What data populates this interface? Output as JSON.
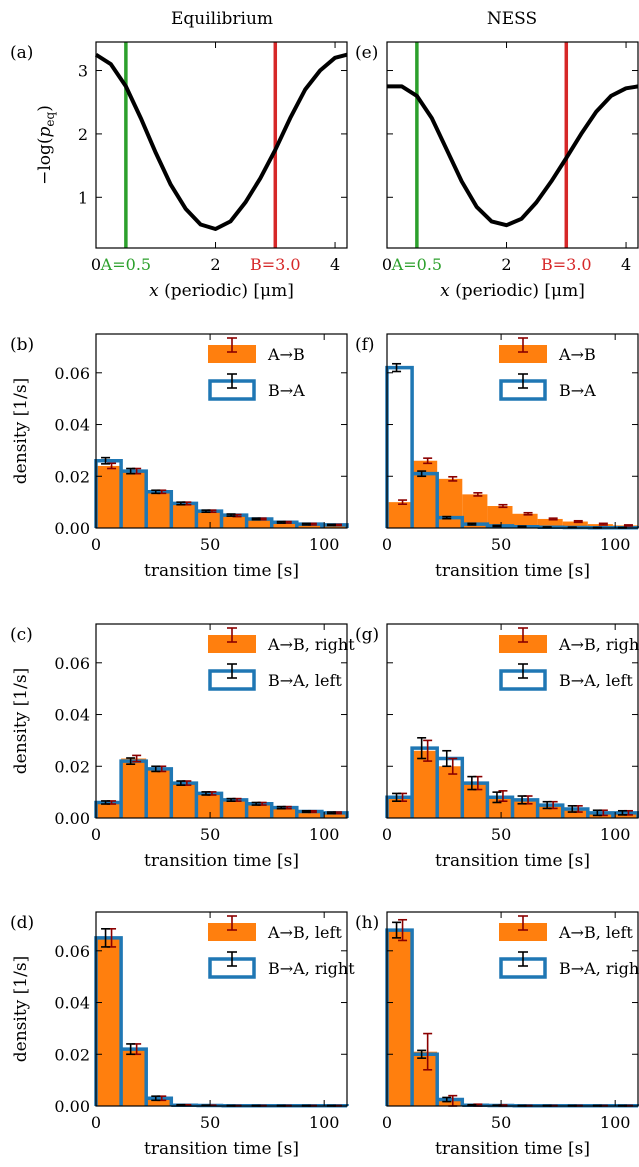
{
  "titles": {
    "left": "Equilibrium",
    "right": "NESS"
  },
  "colors": {
    "orange": "#ff7f0e",
    "blue": "#1f77b4",
    "green": "#2ca02c",
    "red": "#d62728",
    "darkred": "#8b0000",
    "black": "#000000"
  },
  "chart_data": [
    {
      "type": "line",
      "panel": "(a)",
      "title": "Equilibrium",
      "xlabel": "x (periodic) [μm]",
      "ylabel": "−log(p_eq)",
      "xlim": [
        0,
        4.2
      ],
      "ylim": [
        0.2,
        3.45
      ],
      "xticks": [
        0,
        2,
        4
      ],
      "yticks": [
        1,
        2,
        3
      ],
      "x": [
        0,
        0.25,
        0.5,
        0.75,
        1.0,
        1.25,
        1.5,
        1.75,
        2.0,
        2.25,
        2.5,
        2.75,
        3.0,
        3.25,
        3.5,
        3.75,
        4.0,
        4.2
      ],
      "y": [
        3.25,
        3.1,
        2.75,
        2.25,
        1.7,
        1.2,
        0.82,
        0.57,
        0.5,
        0.62,
        0.92,
        1.3,
        1.75,
        2.25,
        2.7,
        3.0,
        3.2,
        3.25
      ],
      "markers": [
        {
          "x": 0.5,
          "label": "A=0.5",
          "color": "green"
        },
        {
          "x": 3.0,
          "label": "B=3.0",
          "color": "red"
        }
      ]
    },
    {
      "type": "line",
      "panel": "(e)",
      "title": "NESS",
      "xlabel": "x (periodic) [μm]",
      "xlim": [
        0,
        4.2
      ],
      "ylim": [
        0.2,
        3.45
      ],
      "xticks": [
        0,
        2,
        4
      ],
      "yticks": [
        1,
        2,
        3
      ],
      "x": [
        0,
        0.25,
        0.5,
        0.75,
        1.0,
        1.25,
        1.5,
        1.75,
        2.0,
        2.25,
        2.5,
        2.75,
        3.0,
        3.25,
        3.5,
        3.75,
        4.0,
        4.2
      ],
      "y": [
        2.75,
        2.75,
        2.6,
        2.25,
        1.75,
        1.25,
        0.85,
        0.62,
        0.56,
        0.66,
        0.92,
        1.25,
        1.62,
        2.0,
        2.35,
        2.6,
        2.72,
        2.75
      ],
      "markers": [
        {
          "x": 0.5,
          "label": "A=0.5",
          "color": "green"
        },
        {
          "x": 3.0,
          "label": "B=3.0",
          "color": "red"
        }
      ]
    },
    {
      "type": "bar",
      "panel": "(b)",
      "xlabel": "transition time [s]",
      "ylabel": "density [1/s]",
      "xlim": [
        0,
        110
      ],
      "ylim": [
        0,
        0.075
      ],
      "bin_width": 11,
      "xticks": [
        0,
        50,
        100
      ],
      "yticks": [
        0.0,
        0.02,
        0.04,
        0.06
      ],
      "series": [
        {
          "name": "A→B",
          "style": "filled",
          "values": [
            0.024,
            0.022,
            0.014,
            0.0095,
            0.0065,
            0.0048,
            0.0035,
            0.0022,
            0.0015,
            0.0012
          ],
          "errors": [
            0.001,
            0.001,
            0.0006,
            0.0005,
            0.0004,
            0.0004,
            0.0003,
            0.0003,
            0.0003,
            0.0002
          ]
        },
        {
          "name": "B→A",
          "style": "outline",
          "values": [
            0.026,
            0.022,
            0.014,
            0.0095,
            0.0065,
            0.005,
            0.0035,
            0.0022,
            0.0015,
            0.0012
          ],
          "errors": [
            0.0012,
            0.001,
            0.0006,
            0.0005,
            0.0004,
            0.0004,
            0.0003,
            0.0003,
            0.0003,
            0.0002
          ]
        }
      ]
    },
    {
      "type": "bar",
      "panel": "(f)",
      "xlabel": "transition time [s]",
      "xlim": [
        0,
        110
      ],
      "ylim": [
        0,
        0.075
      ],
      "bin_width": 11,
      "xticks": [
        0,
        50,
        100
      ],
      "yticks": [
        0.0,
        0.02,
        0.04,
        0.06
      ],
      "series": [
        {
          "name": "A→B",
          "style": "filled",
          "values": [
            0.01,
            0.026,
            0.019,
            0.013,
            0.0085,
            0.0055,
            0.0035,
            0.0025,
            0.0015,
            0.001
          ],
          "errors": [
            0.0008,
            0.001,
            0.0008,
            0.0006,
            0.0005,
            0.0004,
            0.0003,
            0.0003,
            0.0003,
            0.0002
          ]
        },
        {
          "name": "B→A",
          "style": "outline",
          "values": [
            0.062,
            0.021,
            0.004,
            0.0015,
            0.0008,
            0.0005,
            0.0003,
            0.0002,
            0.0001,
            0.0001
          ],
          "errors": [
            0.0015,
            0.001,
            0.0004,
            0.0003,
            0.0002,
            0.0002,
            0.0001,
            0.0001,
            0.0001,
            0.0001
          ]
        }
      ]
    },
    {
      "type": "bar",
      "panel": "(c)",
      "xlabel": "transition time [s]",
      "ylabel": "density [1/s]",
      "xlim": [
        0,
        110
      ],
      "ylim": [
        0,
        0.075
      ],
      "bin_width": 11,
      "xticks": [
        0,
        50,
        100
      ],
      "yticks": [
        0.0,
        0.02,
        0.04,
        0.06
      ],
      "series": [
        {
          "name": "A→B, right",
          "style": "filled",
          "values": [
            0.006,
            0.023,
            0.019,
            0.0135,
            0.0095,
            0.007,
            0.0055,
            0.004,
            0.0025,
            0.002
          ],
          "errors": [
            0.0006,
            0.0012,
            0.001,
            0.0008,
            0.0006,
            0.0005,
            0.0005,
            0.0004,
            0.0003,
            0.0003
          ]
        },
        {
          "name": "B→A, left",
          "style": "outline",
          "values": [
            0.006,
            0.022,
            0.019,
            0.0135,
            0.0095,
            0.007,
            0.0055,
            0.004,
            0.0025,
            0.002
          ],
          "errors": [
            0.0006,
            0.0012,
            0.001,
            0.0008,
            0.0006,
            0.0005,
            0.0005,
            0.0004,
            0.0003,
            0.0003
          ]
        }
      ]
    },
    {
      "type": "bar",
      "panel": "(g)",
      "xlabel": "transition time [s]",
      "xlim": [
        0,
        110
      ],
      "ylim": [
        0,
        0.075
      ],
      "bin_width": 11,
      "xticks": [
        0,
        50,
        100
      ],
      "yticks": [
        0.0,
        0.02,
        0.04,
        0.06
      ],
      "series": [
        {
          "name": "A→B, right",
          "style": "filled",
          "values": [
            0.008,
            0.026,
            0.02,
            0.0135,
            0.0085,
            0.007,
            0.005,
            0.0035,
            0.002,
            0.002
          ],
          "errors": [
            0.0015,
            0.004,
            0.003,
            0.0025,
            0.002,
            0.0015,
            0.0013,
            0.0012,
            0.001,
            0.0008
          ]
        },
        {
          "name": "B→A, left",
          "style": "outline",
          "values": [
            0.008,
            0.027,
            0.023,
            0.0135,
            0.008,
            0.007,
            0.005,
            0.0035,
            0.002,
            0.002
          ],
          "errors": [
            0.0015,
            0.004,
            0.003,
            0.0025,
            0.002,
            0.0015,
            0.0013,
            0.0012,
            0.001,
            0.0008
          ]
        }
      ]
    },
    {
      "type": "bar",
      "panel": "(d)",
      "xlabel": "transition time [s]",
      "ylabel": "density [1/s]",
      "xlim": [
        0,
        110
      ],
      "ylim": [
        0,
        0.075
      ],
      "bin_width": 11,
      "xticks": [
        0,
        50,
        100
      ],
      "yticks": [
        0.0,
        0.02,
        0.04,
        0.06
      ],
      "series": [
        {
          "name": "A→B, left",
          "style": "filled",
          "values": [
            0.065,
            0.022,
            0.003,
            0.0003,
            0.0002,
            0.0001,
            0.0001,
            0.0001,
            0.0001,
            0.0001
          ],
          "errors": [
            0.0035,
            0.002,
            0.0008,
            0.0002,
            0.0001,
            0.0001,
            0.0001,
            0.0001,
            0.0001,
            0.0001
          ]
        },
        {
          "name": "B→A, right",
          "style": "outline",
          "values": [
            0.065,
            0.022,
            0.003,
            0.0003,
            0.0002,
            0.0001,
            0.0001,
            0.0001,
            0.0001,
            0.0001
          ],
          "errors": [
            0.0035,
            0.002,
            0.0008,
            0.0002,
            0.0001,
            0.0001,
            0.0001,
            0.0001,
            0.0001,
            0.0001
          ]
        }
      ]
    },
    {
      "type": "bar",
      "panel": "(h)",
      "xlabel": "transition time [s]",
      "xlim": [
        0,
        110
      ],
      "ylim": [
        0,
        0.075
      ],
      "bin_width": 11,
      "xticks": [
        0,
        50,
        100
      ],
      "yticks": [
        0.0,
        0.02,
        0.04,
        0.06
      ],
      "series": [
        {
          "name": "A→B, left",
          "style": "filled",
          "values": [
            0.068,
            0.021,
            0.002,
            0.0003,
            0.0002,
            0.0001,
            0.0001,
            0.0001,
            0.0001,
            0.0001
          ],
          "errors": [
            0.004,
            0.007,
            0.002,
            0.0004,
            0.0002,
            0.0001,
            0.0001,
            0.0001,
            0.0001,
            0.0001
          ]
        },
        {
          "name": "B→A, right",
          "style": "outline",
          "values": [
            0.068,
            0.02,
            0.0025,
            0.0003,
            0.0002,
            0.0001,
            0.0001,
            0.0001,
            0.0001,
            0.0001
          ],
          "errors": [
            0.003,
            0.0015,
            0.0008,
            0.0002,
            0.0001,
            0.0001,
            0.0001,
            0.0001,
            0.0001,
            0.0001
          ]
        }
      ]
    }
  ]
}
